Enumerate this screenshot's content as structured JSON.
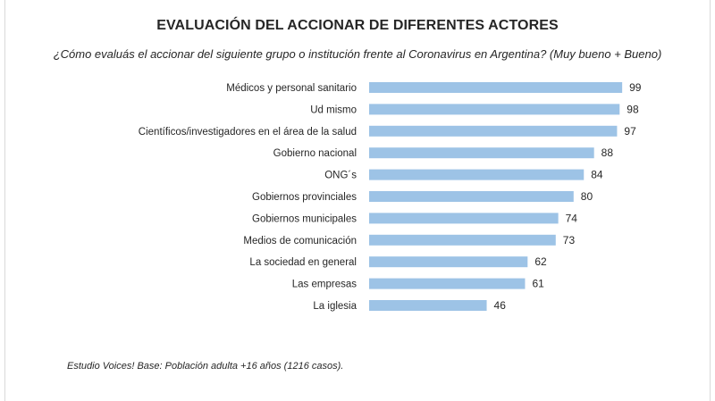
{
  "title": "EVALUACIÓN DEL ACCIONAR DE DIFERENTES ACTORES",
  "subtitle": "¿Cómo evaluás el accionar del siguiente grupo o institución frente al Coronavirus en Argentina? (Muy bueno + Bueno)",
  "footnote": "Estudio Voices! Base: Población adulta +16 años (1216 casos).",
  "chart_data": {
    "type": "bar",
    "orientation": "horizontal",
    "categories": [
      "Médicos y personal sanitario",
      "Ud mismo",
      "Científicos/investigadores en el área de la salud",
      "Gobierno nacional",
      "ONG´s",
      "Gobiernos provinciales",
      "Gobiernos municipales",
      "Medios de comunicación",
      "La sociedad en general",
      "Las empresas",
      "La iglesia"
    ],
    "values": [
      99,
      98,
      97,
      88,
      84,
      80,
      74,
      73,
      62,
      61,
      46
    ],
    "xlim": [
      0,
      100
    ],
    "grid": false,
    "legend": "none",
    "bar_color": "#9dc3e6"
  }
}
